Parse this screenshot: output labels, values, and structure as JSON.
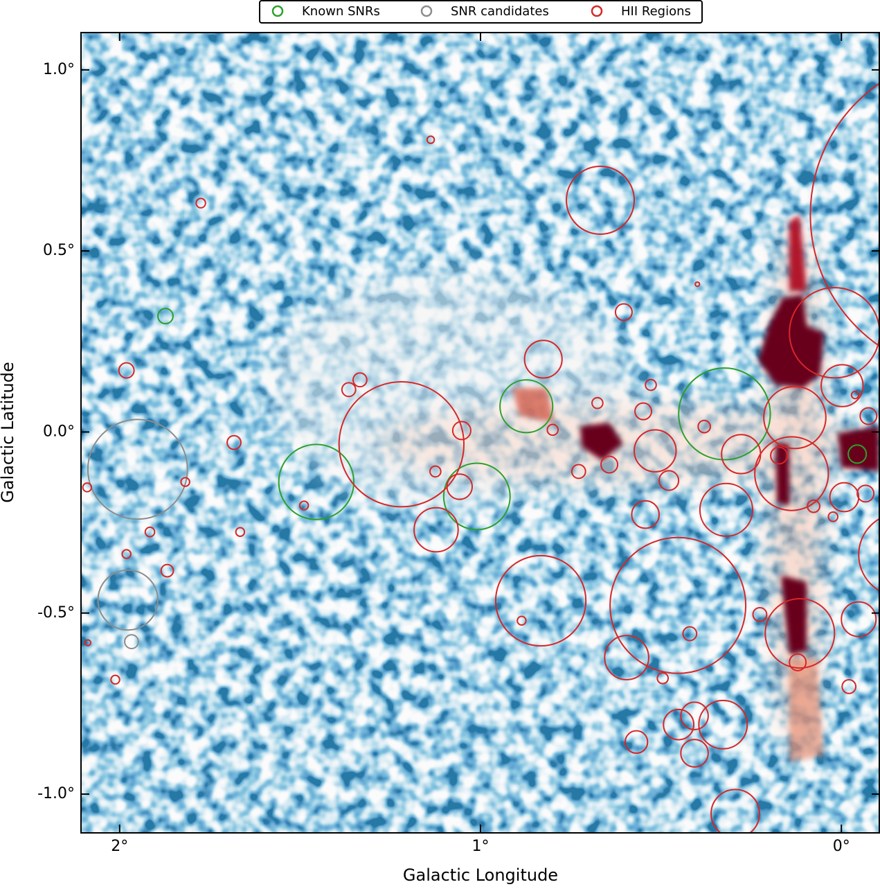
{
  "chart_data": {
    "type": "scatter",
    "x_label": "Galactic Longitude",
    "y_label": "Galactic Latitude",
    "xlim": [
      2.107,
      -0.107
    ],
    "ylim": [
      -1.107,
      1.103
    ],
    "xticks": [
      {
        "value": 2,
        "label": "2°"
      },
      {
        "value": 1,
        "label": "1°"
      },
      {
        "value": 0,
        "label": "0°"
      }
    ],
    "yticks": [
      {
        "value": -1.0,
        "label": "-1.0°"
      },
      {
        "value": -0.5,
        "label": "-0.5°"
      },
      {
        "value": 0.0,
        "label": "0.0°"
      },
      {
        "value": 0.5,
        "label": "0.5°"
      },
      {
        "value": 1.0,
        "label": "1.0°"
      }
    ],
    "legend": "upper center",
    "series": [
      {
        "name": "Known SNRs",
        "color": "#2ca02c",
        "x": [
          1.873,
          1.455,
          0.873,
          1.01,
          0.324,
          -0.044
        ],
        "values": [
          0.32,
          -0.138,
          0.071,
          -0.178,
          0.05,
          -0.061
        ],
        "radius": [
          0.021,
          0.104,
          0.073,
          0.092,
          0.127,
          0.025
        ]
      },
      {
        "name": "SNR candidates",
        "color": "#8c8c8c",
        "x": [
          1.95,
          1.977,
          1.967
        ],
        "values": [
          -0.103,
          -0.464,
          -0.579
        ],
        "radius": [
          0.138,
          0.083,
          0.019
        ]
      },
      {
        "name": "HII Regions",
        "color": "#d62728",
        "x": [
          -0.355,
          0.019,
          0.668,
          1.219,
          0.833,
          0.453,
          0.138,
          0.129,
          0.115,
          0.319,
          0.278,
          0.294,
          0.328,
          0.595,
          0.516,
          -0.163,
          -0.002,
          -0.048,
          0.826,
          1.123,
          0.543,
          0.407,
          0.451,
          0.407,
          -0.008,
          -0.075,
          -0.067,
          1.052,
          1.058,
          0.603,
          1.981,
          1.775,
          1.138,
          1.683,
          1.365,
          1.334,
          1.818,
          1.868,
          1.916,
          1.666,
          1.981,
          2.09,
          2.088,
          2.012,
          1.489,
          0.676,
          0.886,
          0.42,
          0.226,
          -0.021,
          0.121,
          0.568,
          0.549,
          0.38,
          0.173,
          0.478,
          0.643,
          0.728,
          0.8,
          1.125,
          0.528,
          0.399,
          0.077,
          0.023,
          0.495,
          -0.038
        ],
        "values": [
          0.6,
          0.274,
          0.64,
          -0.034,
          -0.466,
          -0.479,
          -0.115,
          0.04,
          -0.556,
          -0.215,
          -0.061,
          -1.054,
          -0.808,
          -0.623,
          -0.052,
          -0.339,
          0.128,
          -0.517,
          0.201,
          -0.27,
          -0.228,
          -0.887,
          -0.808,
          -0.784,
          -0.18,
          0.044,
          -0.17,
          0.004,
          -0.151,
          0.331,
          0.17,
          0.632,
          0.807,
          -0.029,
          0.117,
          0.144,
          -0.138,
          -0.383,
          -0.276,
          -0.276,
          -0.337,
          -0.153,
          -0.582,
          -0.684,
          -0.203,
          0.08,
          -0.521,
          -0.557,
          -0.504,
          -0.703,
          -0.636,
          -0.856,
          0.057,
          0.015,
          -0.065,
          -0.134,
          -0.09,
          -0.109,
          0.006,
          -0.109,
          0.13,
          0.408,
          -0.205,
          -0.234,
          -0.68,
          0.102
        ],
        "radius": [
          0.441,
          0.125,
          0.094,
          0.173,
          0.125,
          0.188,
          0.102,
          0.086,
          0.096,
          0.073,
          0.054,
          0.067,
          0.067,
          0.061,
          0.058,
          0.115,
          0.058,
          0.048,
          0.052,
          0.061,
          0.038,
          0.038,
          0.042,
          0.038,
          0.04,
          0.023,
          0.023,
          0.025,
          0.035,
          0.023,
          0.021,
          0.013,
          0.01,
          0.019,
          0.019,
          0.019,
          0.012,
          0.017,
          0.013,
          0.012,
          0.012,
          0.012,
          0.008,
          0.012,
          0.012,
          0.015,
          0.012,
          0.019,
          0.019,
          0.019,
          0.023,
          0.031,
          0.023,
          0.017,
          0.023,
          0.027,
          0.023,
          0.019,
          0.015,
          0.015,
          0.015,
          0.006,
          0.017,
          0.013,
          0.015,
          0.01
        ]
      }
    ]
  }
}
